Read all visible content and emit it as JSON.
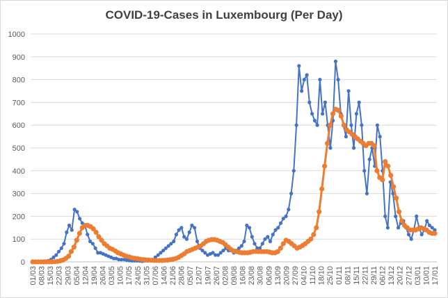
{
  "chart_data": {
    "type": "line",
    "title": "COVID-19-Cases in Luxembourg (Per Day)",
    "xlabel": "",
    "ylabel": "",
    "ylim": [
      0,
      1000
    ],
    "yticks": [
      0,
      100,
      200,
      300,
      400,
      500,
      600,
      700,
      800,
      900,
      1000
    ],
    "grid": "horizontal",
    "legend": "none",
    "x_tick_labels": [
      "01/03",
      "08/03",
      "15/03",
      "22/03",
      "29/03",
      "05/04",
      "12/04",
      "19/04",
      "26/04",
      "03/05",
      "10/05",
      "17/05",
      "24/05",
      "31/05",
      "07/06",
      "14/06",
      "21/06",
      "28/06",
      "05/07",
      "12/07",
      "19/07",
      "26/07",
      "02/08",
      "09/08",
      "16/08",
      "23/08",
      "30/08",
      "06/09",
      "13/09",
      "20/09",
      "27/09",
      "04/10",
      "11/10",
      "18/10",
      "25/10",
      "01/11",
      "08/11",
      "15/11",
      "22/11",
      "29/11",
      "06/12",
      "13/12",
      "20/12",
      "27/12",
      "03/01",
      "10/01",
      "17/01"
    ],
    "series": [
      {
        "color": "#4472c4",
        "values": [
          0,
          0,
          0,
          0,
          2,
          3,
          5,
          10,
          20,
          30,
          45,
          60,
          80,
          130,
          160,
          140,
          230,
          220,
          190,
          170,
          160,
          120,
          90,
          80,
          60,
          40,
          40,
          35,
          30,
          25,
          20,
          15,
          15,
          10,
          10,
          10,
          8,
          6,
          5,
          5,
          5,
          4,
          3,
          5,
          5,
          6,
          10,
          20,
          30,
          40,
          50,
          60,
          70,
          80,
          90,
          120,
          140,
          150,
          110,
          100,
          130,
          160,
          150,
          90,
          60,
          50,
          40,
          30,
          35,
          40,
          30,
          30,
          40,
          50,
          60,
          50,
          50,
          40,
          50,
          60,
          70,
          90,
          160,
          150,
          110,
          80,
          60,
          60,
          80,
          100,
          110,
          90,
          120,
          140,
          150,
          170,
          190,
          200,
          230,
          300,
          400,
          600,
          860,
          750,
          800,
          820,
          700,
          650,
          620,
          600,
          800,
          650,
          700,
          600,
          500,
          620,
          880,
          800,
          650,
          600,
          550,
          750,
          600,
          500,
          650,
          700,
          600,
          400,
          300,
          450,
          500,
          420,
          600,
          550,
          400,
          200,
          150,
          350,
          300,
          200,
          150,
          170,
          180,
          150,
          120,
          100,
          140,
          200,
          150,
          120,
          140,
          180,
          160,
          150,
          140
        ]
      },
      {
        "color": "#ed7d31",
        "values": [
          0,
          0,
          0,
          0,
          0,
          0,
          0,
          0,
          1,
          2,
          5,
          8,
          15,
          25,
          45,
          65,
          95,
          125,
          150,
          160,
          160,
          155,
          145,
          130,
          110,
          95,
          80,
          70,
          60,
          55,
          48,
          40,
          35,
          30,
          25,
          22,
          18,
          16,
          14,
          12,
          10,
          9,
          8,
          7,
          6,
          6,
          6,
          6,
          7,
          8,
          10,
          12,
          15,
          20,
          28,
          35,
          45,
          50,
          55,
          60,
          65,
          70,
          80,
          90,
          95,
          98,
          98,
          95,
          90,
          85,
          75,
          65,
          55,
          48,
          45,
          42,
          40,
          40,
          40,
          42,
          45,
          46,
          45,
          45,
          45,
          45,
          43,
          40,
          40,
          45,
          60,
          80,
          95,
          90,
          80,
          70,
          60,
          65,
          72,
          80,
          90,
          100,
          120,
          150,
          220,
          320,
          420,
          520,
          600,
          650,
          670,
          665,
          640,
          600,
          580,
          570,
          560,
          550,
          540,
          530,
          520,
          510,
          520,
          520,
          510,
          400,
          370,
          360,
          440,
          420,
          380,
          330,
          280,
          220,
          180,
          160,
          150,
          140,
          140,
          140,
          145,
          150,
          145,
          140,
          130,
          125,
          125
        ]
      }
    ]
  }
}
